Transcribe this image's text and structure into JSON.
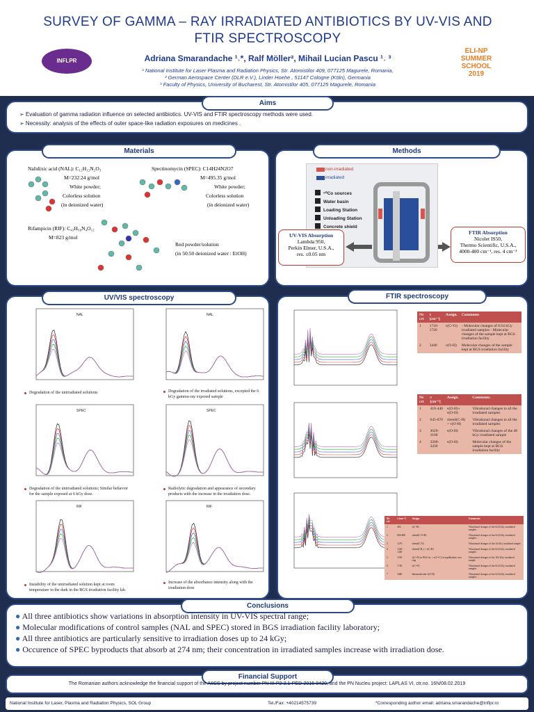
{
  "header": {
    "title": "SURVEY OF GAMMA – RAY IRRADIATED ANTIBIOTICS BY UV-VIS AND FTIR SPECTROSCOPY",
    "authors": "Adriana Smarandache ¹˒*, Ralf Möller², Mihail Lucian Pascu ¹˒ ³",
    "affiliations": [
      "¹ National Institute for Laser Plasma and Radiation Physics, Str. Atomistilor 409, 077125 Magurele, Romania,",
      "² German Aerospace Center (DLR e.V.), Linder Hoehe , 51147 Cologne (Köln), Germania",
      "³ Faculty of Physics, University of Bucharest, Str. Atomistilor 405, 077125 Magurele, Romania"
    ],
    "logo_left": "INFLPR",
    "logo_right": [
      "ELI-NP",
      "SUMMER",
      "SCHOOL",
      "2019"
    ]
  },
  "aims": {
    "heading": "Aims",
    "items": [
      "➢ Evaluation of gamma radiation influence on selected antibiotics. UV-VIS and FTIR spectroscopy methods were used.",
      "➢ Necessity: analysis of the effects of outer space-like radiation exposures on medicines ."
    ]
  },
  "materials": {
    "heading": "Materials",
    "nal": [
      "Nalidixic acid (NAL): C₁₂H₁₂N₂O₃",
      "M=232.24 g/mol",
      "White powder;",
      "Colorless  solution",
      "(in deionized water)"
    ],
    "spec": [
      "Spectinomycin (SPEC): C14H24N2O7",
      "M=495.35 g/mol",
      "White powder;",
      "Colorless  solution",
      "(in deionized water)"
    ],
    "rif": [
      "Rifampicin (RIF): C₄₃H₅₈N₄O₁₂",
      "M=823 g/mol",
      "Red powder/solution",
      "(in 50:50  deionized water : EtOH)"
    ]
  },
  "methods": {
    "heading": "Methods",
    "legend": [
      "non-irradiated",
      "irradiated"
    ],
    "steps": [
      "⁶⁰Co sources",
      "Water basin",
      "Loading Station",
      "Unloading Station",
      "Concrete shield"
    ],
    "uvvis": [
      "UV-VIS Absorption",
      "Lambda 950,",
      "Perkin Elmer, U.S.A.,",
      "res. ≤0.05 nm"
    ],
    "ftir": [
      "FTIR Absorption",
      "Nicolet IS50,",
      "Thermo Scientific, U.S.A.,",
      "4000-400 cm⁻¹, res. 4 cm⁻¹"
    ]
  },
  "uvvis": {
    "heading": "UV/VIS spectroscopy",
    "captions": [
      "Degradation of the unirradiated solutions",
      "Degradation of the irradiated solutions, excepted the 6 kGy gamma-ray exposed sample",
      "Degradation of the unirradiated solutions; Similar behavior for the sample exposed at 6 kGy dose.",
      "Radiolytic degradation and  appearance of secondary products with the increase in the irradiation dose.",
      "Instability of the unirradiated solution kept at room temperature in the dark in the BGS irradiation facility lab.",
      "Increase of the absorbance intensity along with the irradiation dose"
    ],
    "plot_titles": [
      "NAL",
      "NAL",
      "SPEC",
      "SPEC",
      "RIF",
      "RIF"
    ]
  },
  "ftir": {
    "heading": "FTIR spectroscopy",
    "table1": {
      "header": [
        "Nr crt",
        "ν [cm⁻¹]",
        "Assign.",
        "Comments"
      ],
      "rows": [
        [
          "1",
          "1710-1720",
          "ν(C=O)",
          "- Molecular changes of 6/24 kGy irradiated samples - Molecular changes of the sample kept at BGS irradiation facility"
        ],
        [
          "2",
          "3440",
          "ν(O-H)",
          "Molecular changes of the sample kept at BGS irradiation facility"
        ]
      ]
    },
    "table2": {
      "header": [
        "Nr crt",
        "ν [cm⁻¹]",
        "Assign.",
        "Comments"
      ],
      "rows": [
        [
          "1",
          "418-440",
          "ν(O-H)+ ν(O-H)",
          "Vibrational changes to all the irradiated samples"
        ],
        [
          "2",
          "645-670",
          "νbend(C-H) + ν(O-H)",
          "Vibrational changes to all the irradiated samples"
        ],
        [
          "3",
          "3020-3100",
          "ν(O-H)",
          "Vibrational changes of the 48 kGy irradiated sample"
        ],
        [
          "4",
          "3200-3430",
          "ν(O-H)",
          "Molecular changes of the sample kept at BGS irradiation facility"
        ]
      ]
    },
    "table3": {
      "header": [
        "Nr crt",
        "ν [cm⁻¹]",
        "Assign.",
        "Comments"
      ],
      "rows": [
        [
          "1",
          "492",
          "ν(C-H)",
          "Vibrational changes of the 6/24 kGy irradiated samples"
        ],
        [
          "2",
          "696-800",
          "νbend(C-O-H)",
          "Vibrational changes of the 6/24 kGy irradiated samples"
        ],
        [
          "3",
          "1276",
          "νbend(C-O)",
          "Vibrational changes of the 24 kGy irradiated sample"
        ],
        [
          "4",
          "1330-1340",
          "νbend(CH₃) + ν(C-H)",
          "Vibrational changes of the 6/24 kGy irradiated samples"
        ],
        [
          "5",
          "1550",
          "ν(C=N) in BGS irr. + ν(C=C) of naphthalene core ring",
          "Vibrational changes of the 102 kGy irradiated sample"
        ],
        [
          "6",
          "1720",
          "ν(C=O)",
          "Vibrational changes of the 6/24 kGy irradiated samples"
        ],
        [
          "7",
          "3460",
          "Intermolecular ν(O-H)",
          "Vibrational changes of the 6/24 kGy irradiated samples"
        ]
      ]
    }
  },
  "conclusions": {
    "heading": "Conclusions",
    "items": [
      "All three antibiotics show variations in absorption intensity in UV-VIS spectral range;",
      "Molecular modifications of control samples (NAL and SPEC) stored in BGS irradiation facility laboratory;",
      "All three antibiotics are particularly sensitive to irradiation doses up to 24 kGy;",
      "Occurence of SPEC byproducts that absorb at 274 nm; their concentration in irradiated samples increase with irradiation dose."
    ]
  },
  "financial": {
    "heading": "Financial Support",
    "text": "The Romanian authors acknowledge the financial support of the AIICS by project number PN-III-P2-2.1-PED-2016-0420, and the PN Nucleu project: LAPLAS VI, ctr.no. 16N/08.02.2019"
  },
  "footer": {
    "left": "National Institute for Laser, Plasma and Radiation Physics, SOL Group",
    "center": "Tel./Fax: +40214575739",
    "right": "*Corresponding author email: adriana.smarandache@inflpr.ro"
  }
}
